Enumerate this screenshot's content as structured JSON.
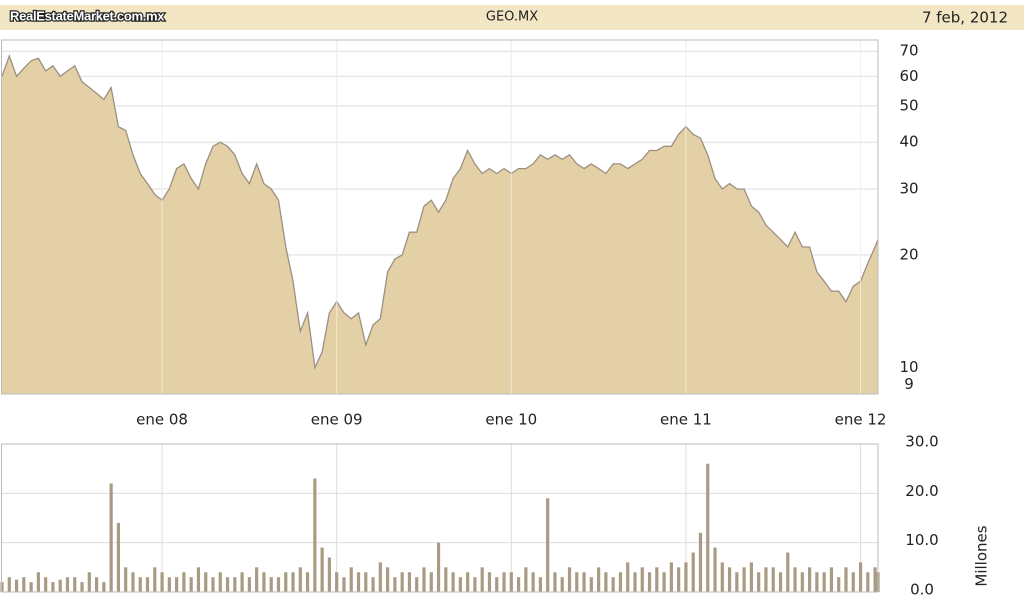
{
  "header": {
    "source": "RealEstateMarket.com.mx",
    "title": "GEO.MX",
    "date": "7 feb, 2012"
  },
  "chart_data": [
    {
      "type": "area",
      "yscale": "log",
      "color": "#e3d0a6",
      "line_color": "#9b9081",
      "grid": true,
      "x": [
        0,
        0.5,
        1,
        1.5,
        2,
        2.5,
        3,
        3.5,
        4,
        4.5,
        5,
        5.5,
        6,
        6.5,
        7,
        7.5,
        8,
        8.5,
        9,
        9.5,
        10,
        10.5,
        11,
        11.5,
        12,
        12.5,
        13,
        13.5,
        14,
        14.5,
        15,
        15.5,
        16,
        16.5,
        17,
        17.5,
        18,
        18.5,
        19,
        19.5,
        20,
        20.5,
        21,
        21.5,
        22,
        22.5,
        23,
        23.5,
        24,
        24.5,
        25,
        25.5,
        26,
        26.5,
        27,
        27.5,
        28,
        28.5,
        29,
        29.5,
        30,
        30.5,
        31,
        31.5,
        32,
        32.5,
        33,
        33.5,
        34,
        34.5,
        35,
        35.5,
        36,
        36.5,
        37,
        37.5,
        38,
        38.5,
        39,
        39.5,
        40,
        40.5,
        41,
        41.5,
        42,
        42.5,
        43,
        43.5,
        44,
        44.5,
        45,
        45.5,
        46,
        46.5,
        47,
        47.5,
        48,
        48.5,
        49,
        49.5,
        50,
        50.5,
        51,
        51.5,
        52,
        52.5,
        53,
        53.5,
        54,
        54.5,
        55,
        55.5,
        56,
        56.5,
        57,
        57.5,
        58,
        58.5,
        59,
        59.5,
        60,
        60.2
      ],
      "values": [
        60,
        68,
        60,
        63,
        66,
        67,
        62,
        64,
        60,
        62,
        64,
        58,
        56,
        54,
        52,
        56,
        44,
        43,
        37,
        33,
        31,
        29,
        28,
        30,
        34,
        35,
        32,
        30,
        35,
        39,
        40,
        39,
        37,
        33,
        31,
        35,
        31,
        30,
        28,
        21,
        17,
        12.5,
        14,
        10,
        11,
        14,
        15,
        14,
        13.5,
        14,
        11.5,
        13,
        13.5,
        18,
        19.5,
        20,
        23,
        23,
        27,
        28,
        26,
        28,
        32,
        34,
        38,
        35,
        33,
        34,
        33,
        34,
        33,
        34,
        34,
        35,
        37,
        36,
        37,
        36,
        37,
        35,
        34,
        35,
        34,
        33,
        35,
        35,
        34,
        35,
        36,
        38,
        38,
        39,
        39,
        42,
        44,
        42,
        41,
        37,
        32,
        30,
        31,
        30,
        30,
        27,
        26,
        24,
        23,
        22,
        21,
        23,
        21,
        21,
        18,
        17,
        16,
        16,
        15,
        16.5,
        17,
        19,
        21,
        22
      ],
      "xlim": [
        0,
        60.2
      ],
      "xticks": [
        {
          "value": 11,
          "label": "ene 08"
        },
        {
          "value": 23,
          "label": "ene 09"
        },
        {
          "value": 35,
          "label": "ene 10"
        },
        {
          "value": 47,
          "label": "ene 11"
        },
        {
          "value": 59,
          "label": "ene 12"
        }
      ],
      "ylim": [
        8.5,
        75
      ],
      "yticks": [
        9,
        10,
        20,
        30,
        40,
        50,
        60,
        70
      ]
    },
    {
      "type": "bar",
      "color": "#a99b83",
      "y_label": "Millones",
      "grid": true,
      "values": [
        2,
        3,
        2.5,
        3,
        2,
        4,
        3,
        2,
        2.5,
        3,
        3,
        2,
        4,
        3,
        2,
        22,
        14,
        5,
        4,
        3,
        3,
        5,
        4,
        3,
        3,
        4,
        3,
        5,
        4,
        3,
        4,
        3,
        3,
        4,
        3,
        5,
        4,
        3,
        3,
        4,
        4,
        5,
        4,
        23,
        9,
        7,
        4,
        3,
        5,
        4,
        4,
        3,
        6,
        5,
        3,
        4,
        4,
        3,
        5,
        4,
        10,
        5,
        4,
        3,
        4,
        3,
        5,
        4,
        3,
        4,
        4,
        3,
        5,
        4,
        3,
        19,
        4,
        3,
        5,
        4,
        4,
        3,
        5,
        4,
        3,
        4,
        6,
        4,
        5,
        4,
        5,
        4,
        6,
        5,
        6,
        8,
        12,
        26,
        9,
        6,
        5,
        4,
        5,
        6,
        4,
        5,
        5,
        4,
        8,
        5,
        4,
        5,
        4,
        4,
        5,
        3,
        5,
        4,
        6,
        4,
        5,
        4
      ],
      "ylim": [
        0,
        30
      ],
      "yticks": [
        {
          "value": 0,
          "label": "0.0"
        },
        {
          "value": 10,
          "label": "10.0"
        },
        {
          "value": 20,
          "label": "20.0"
        },
        {
          "value": 30,
          "label": "30.0"
        }
      ]
    }
  ]
}
